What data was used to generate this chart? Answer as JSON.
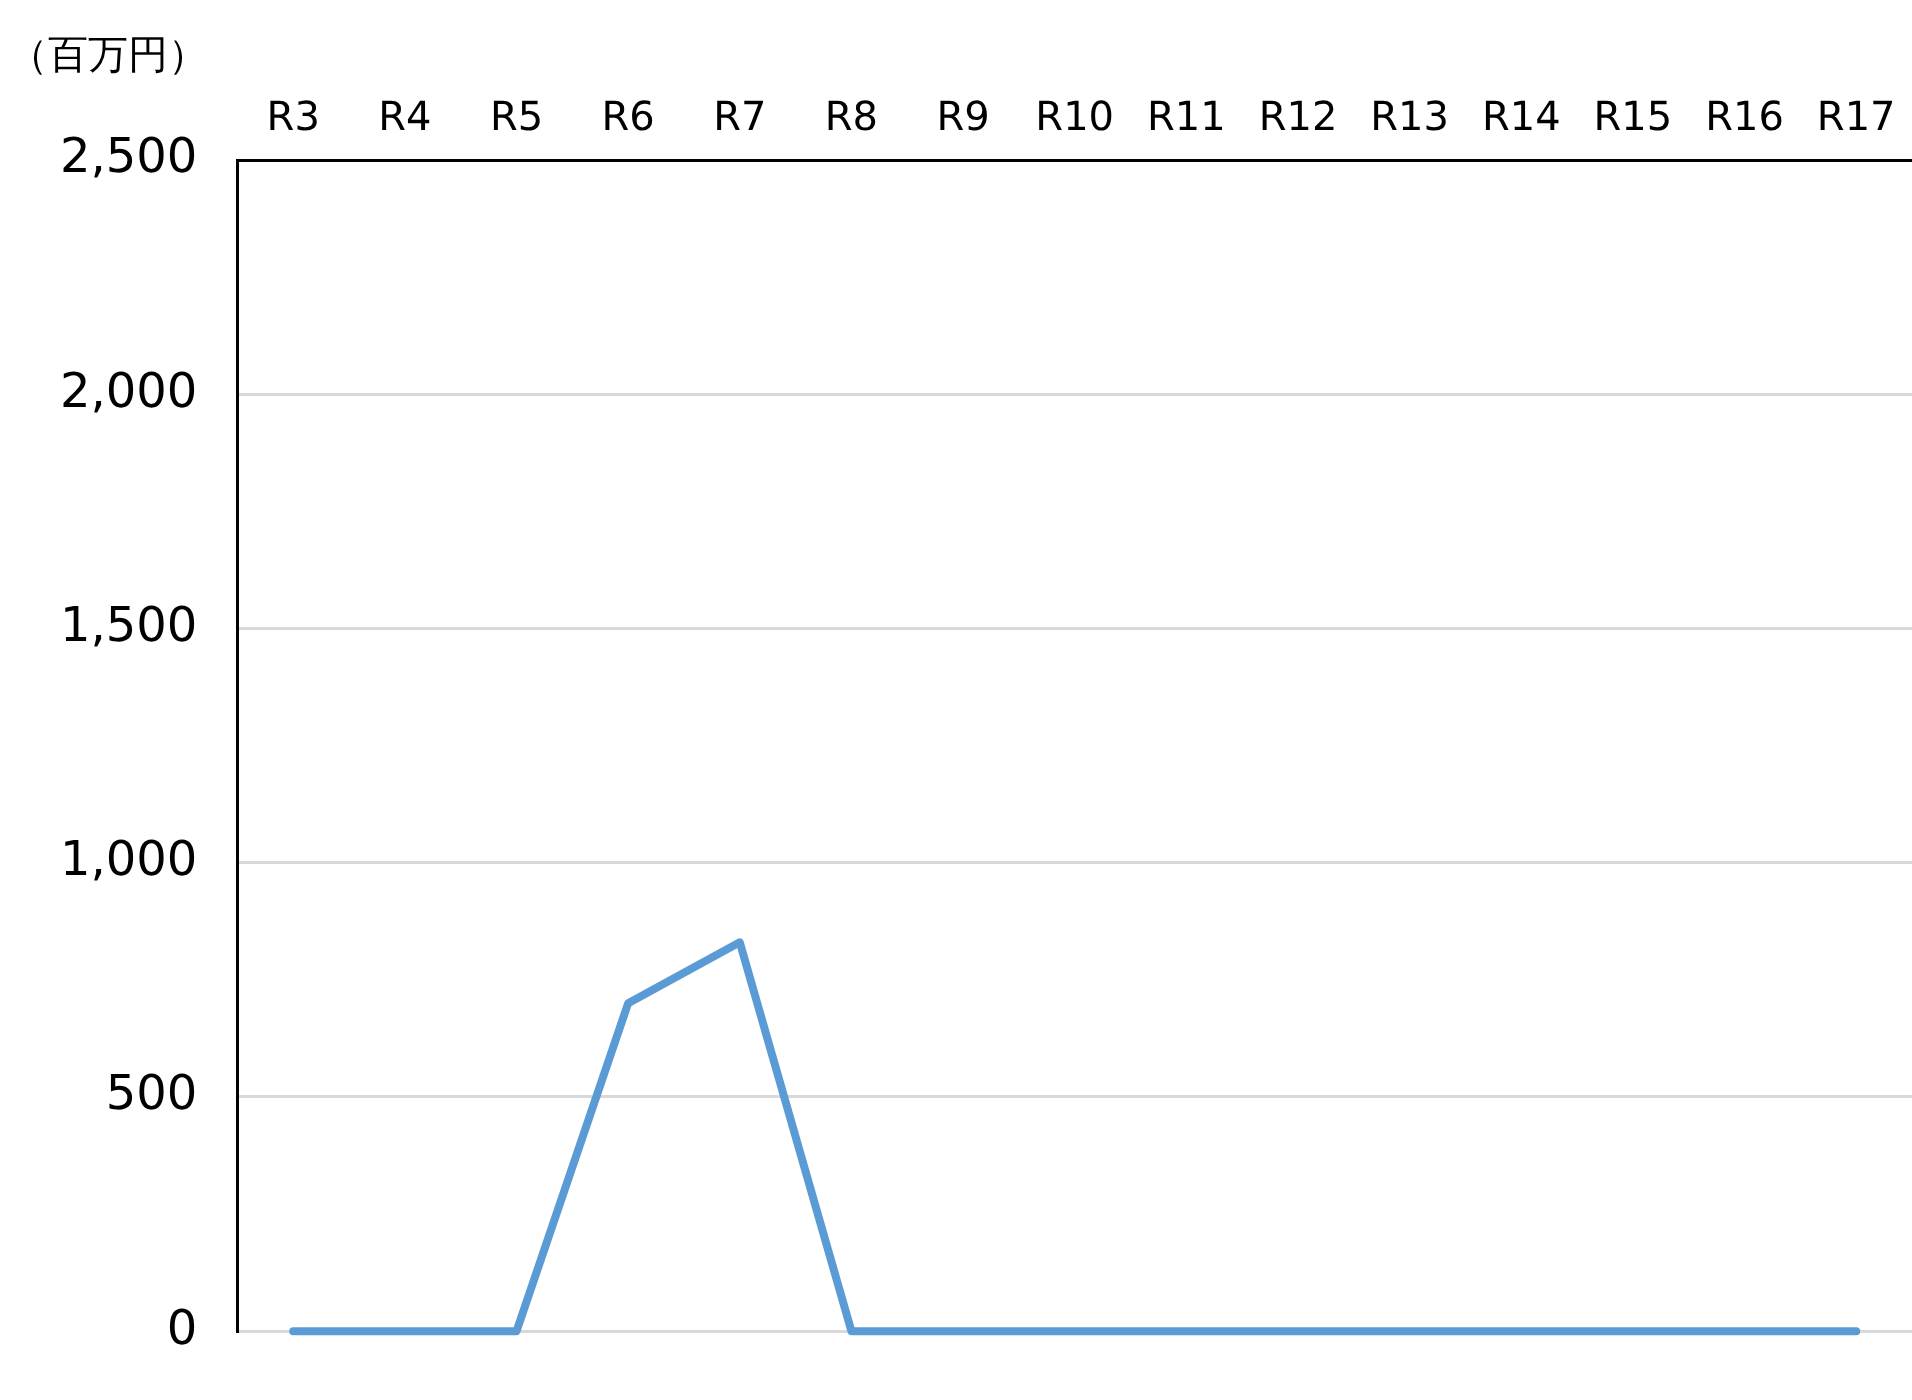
{
  "chart_data": {
    "type": "line",
    "ylabel": "（百万円）",
    "categories": [
      "R3",
      "R4",
      "R5",
      "R6",
      "R7",
      "R8",
      "R9",
      "R10",
      "R11",
      "R12",
      "R13",
      "R14",
      "R15",
      "R16",
      "R17"
    ],
    "series": [
      {
        "color": "#5b9bd5",
        "values": [
          0,
          0,
          0,
          700,
          830,
          0,
          0,
          0,
          0,
          0,
          0,
          0,
          0,
          0,
          0
        ]
      }
    ],
    "ylim": [
      0,
      2500
    ],
    "yticks": [
      0,
      500,
      {
        "value": 1000,
        "label": "1,000"
      },
      {
        "value": 1500,
        "label": "1,500"
      },
      {
        "value": 2000,
        "label": "2,000"
      },
      {
        "value": 2500,
        "label": "2,500"
      }
    ],
    "grid": "y",
    "legend": false,
    "marker": "none",
    "line_style": "solid"
  }
}
